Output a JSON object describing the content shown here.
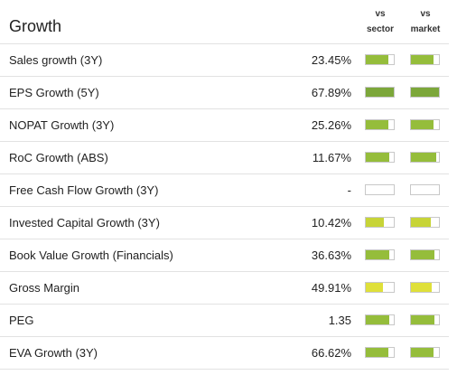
{
  "header": {
    "title": "Growth",
    "col_sector": "vs\nsector",
    "col_market": "vs\nmarket"
  },
  "colors": {
    "dark_green": "#7ca73a",
    "mid_green": "#95bd3b",
    "yellow_green": "#c7d437",
    "yellow": "#dfe03a",
    "empty": "#ffffff"
  },
  "rows": [
    {
      "label": "Sales growth (3Y)",
      "value": "23.45%",
      "sector_level": 0.8,
      "sector_color": "#95bd3b",
      "market_level": 0.8,
      "market_color": "#95bd3b"
    },
    {
      "label": "EPS Growth (5Y)",
      "value": "67.89%",
      "sector_level": 1.0,
      "sector_color": "#7ca73a",
      "market_level": 1.0,
      "market_color": "#7ca73a"
    },
    {
      "label": "NOPAT Growth (3Y)",
      "value": "25.26%",
      "sector_level": 0.8,
      "sector_color": "#95bd3b",
      "market_level": 0.8,
      "market_color": "#95bd3b"
    },
    {
      "label": "RoC Growth (ABS)",
      "value": "11.67%",
      "sector_level": 0.85,
      "sector_color": "#95bd3b",
      "market_level": 0.9,
      "market_color": "#95bd3b"
    },
    {
      "label": "Free Cash Flow Growth (3Y)",
      "value": "-",
      "sector_level": 0,
      "sector_color": "#ffffff",
      "market_level": 0,
      "market_color": "#ffffff"
    },
    {
      "label": "Invested Capital Growth (3Y)",
      "value": "10.42%",
      "sector_level": 0.65,
      "sector_color": "#c7d437",
      "market_level": 0.7,
      "market_color": "#c7d437"
    },
    {
      "label": "Book Value Growth (Financials)",
      "value": "36.63%",
      "sector_level": 0.85,
      "sector_color": "#95bd3b",
      "market_level": 0.85,
      "market_color": "#95bd3b"
    },
    {
      "label": "Gross Margin",
      "value": "49.91%",
      "sector_level": 0.6,
      "sector_color": "#dfe03a",
      "market_level": 0.75,
      "market_color": "#dfe03a"
    },
    {
      "label": "PEG",
      "value": "1.35",
      "sector_level": 0.85,
      "sector_color": "#95bd3b",
      "market_level": 0.85,
      "market_color": "#95bd3b"
    },
    {
      "label": "EVA Growth (3Y)",
      "value": "66.62%",
      "sector_level": 0.8,
      "sector_color": "#95bd3b",
      "market_level": 0.8,
      "market_color": "#95bd3b"
    }
  ]
}
